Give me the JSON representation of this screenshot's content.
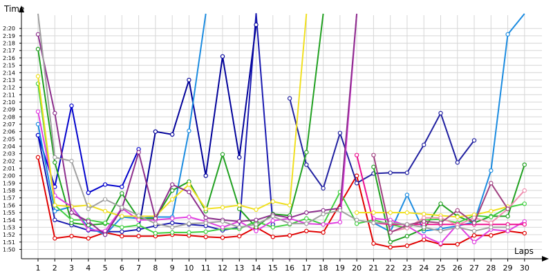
{
  "chart_data": {
    "type": "line",
    "title": "",
    "ylabel": "Time",
    "xlabel": "Laps",
    "x": [
      1,
      2,
      3,
      4,
      5,
      6,
      7,
      8,
      9,
      10,
      11,
      12,
      13,
      14,
      15,
      16,
      17,
      18,
      19,
      20,
      21,
      22,
      23,
      24,
      25,
      26,
      27,
      28,
      29,
      30
    ],
    "y_ticks": [
      "1:50",
      "1:51",
      "1:52",
      "1:53",
      "1:54",
      "1:55",
      "1:56",
      "1:57",
      "1:58",
      "1:59",
      "2:00",
      "2:01",
      "2:02",
      "2:03",
      "2:04",
      "2:05",
      "2:06",
      "2:07",
      "2:08",
      "2:09",
      "2:10",
      "2:11",
      "2:12",
      "2:13",
      "2:14",
      "2:15",
      "2:16",
      "2:17",
      "2:18",
      "2:19",
      "2:20"
    ],
    "ylim": [
      109.2,
      141.8
    ],
    "ylim_label": [
      "1:49.2",
      "2:21.8"
    ],
    "grid": true,
    "legend": "none",
    "series": [
      {
        "color": "#e00000",
        "values": [
          122.5,
          111.5,
          111.8,
          111.5,
          112.3,
          111.8,
          111.8,
          111.8,
          112.0,
          111.9,
          111.7,
          111.6,
          111.8,
          113.0,
          111.7,
          111.9,
          112.5,
          112.3,
          null,
          120.0,
          110.8,
          110.3,
          110.5,
          111.3,
          110.7,
          110.7,
          111.9,
          111.9,
          112.5,
          112.2
        ]
      },
      {
        "color": "#1a1ab0",
        "values": [
          125.5,
          114.0,
          113.3,
          112.6,
          112.4,
          112.4,
          112.7,
          113.2,
          113.6,
          113.4,
          113.2,
          112.6,
          113.0,
          142.0,
          113.4,
          null,
          null,
          null,
          null,
          null,
          null,
          null,
          null,
          null,
          null,
          null,
          null,
          null,
          null,
          null
        ]
      },
      {
        "color": "#0000cc",
        "values": [
          125.5,
          118.5,
          129.5,
          117.7,
          118.8,
          118.5,
          123.6,
          null,
          null,
          null,
          null,
          null,
          null,
          null,
          null,
          null,
          null,
          null,
          null,
          null,
          null,
          null,
          null,
          null,
          null,
          null,
          null,
          null,
          null,
          null
        ]
      },
      {
        "color": "#000099",
        "values": [
          null,
          null,
          null,
          null,
          null,
          null,
          112.7,
          126.0,
          125.6,
          133.0,
          120.0,
          136.2,
          122.5,
          140.5,
          null,
          null,
          null,
          null,
          null,
          null,
          null,
          null,
          null,
          null,
          null,
          null,
          null,
          null,
          null,
          null
        ]
      },
      {
        "color": "#2020a0",
        "values": [
          null,
          null,
          null,
          null,
          null,
          null,
          null,
          null,
          null,
          null,
          null,
          null,
          null,
          null,
          null,
          130.5,
          121.5,
          118.3,
          125.8,
          119.0,
          120.3,
          120.4,
          120.4,
          124.2,
          128.5,
          121.8,
          124.8,
          null,
          null,
          null
        ]
      },
      {
        "color": "#1a8be0",
        "values": [
          127.0,
          115.2,
          115.8,
          113.0,
          112.0,
          114.4,
          114.2,
          114.4,
          114.4,
          126.1,
          142.0,
          null,
          null,
          null,
          null,
          null,
          null,
          null,
          null,
          null,
          null,
          null,
          null,
          null,
          null,
          null,
          null,
          null,
          null,
          null
        ]
      },
      {
        "color": "#1a8be0",
        "values": [
          null,
          null,
          null,
          null,
          null,
          null,
          null,
          null,
          null,
          null,
          null,
          null,
          null,
          null,
          null,
          null,
          null,
          null,
          null,
          null,
          113.6,
          112.4,
          117.4,
          112.5,
          112.8,
          113.2,
          113.7,
          120.7,
          139.2,
          142.0
        ]
      },
      {
        "color": "#20a020",
        "values": [
          137.2,
          121.8,
          113.6,
          113.3,
          113.5,
          117.6,
          114.2,
          114.2,
          118.0,
          119.2,
          115.2,
          122.9,
          115.5,
          113.0,
          114.8,
          114.6,
          123.2,
          142.0,
          null,
          null,
          null,
          null,
          null,
          null,
          null,
          null,
          null,
          null,
          null,
          null
        ]
      },
      {
        "color": "#20a020",
        "values": [
          null,
          null,
          null,
          null,
          null,
          null,
          null,
          null,
          null,
          null,
          null,
          null,
          null,
          null,
          null,
          null,
          null,
          null,
          null,
          null,
          121.2,
          111.0,
          111.8,
          112.8,
          116.2,
          114.5,
          113.6,
          114.5,
          114.5,
          121.5
        ]
      },
      {
        "color": "#40d040",
        "values": [
          132.5,
          116.0,
          114.0,
          114.0,
          113.6,
          113.0,
          113.3,
          112.2,
          112.3,
          112.3,
          112.4,
          112.8,
          112.8,
          113.8,
          113.0,
          113.4,
          114.2,
          113.4,
          117.8,
          113.5,
          114.0,
          113.4,
          112.9,
          114.0,
          114.1,
          113.6,
          114.6,
          114.4,
          115.7,
          116.2
        ]
      },
      {
        "color": "#e040e0",
        "values": [
          128.7,
          117.3,
          115.8,
          112.7,
          112.5,
          115.6,
          114.0,
          114.0,
          114.2,
          114.4,
          113.8,
          113.0,
          113.8,
          112.5,
          113.9,
          114.2,
          113.5,
          113.4,
          113.7,
          142.0,
          null,
          null,
          null,
          null,
          null,
          null,
          null,
          null,
          null,
          null
        ]
      },
      {
        "color": "#e040e0",
        "values": [
          null,
          null,
          null,
          null,
          null,
          null,
          null,
          null,
          null,
          null,
          null,
          null,
          null,
          null,
          null,
          null,
          null,
          null,
          null,
          null,
          114.2,
          114.0,
          113.2,
          111.8,
          110.8,
          113.4,
          111.0,
          112.7,
          112.5,
          113.8
        ]
      },
      {
        "color": "#ee1090",
        "values": [
          null,
          null,
          null,
          null,
          null,
          null,
          null,
          null,
          null,
          null,
          null,
          null,
          null,
          null,
          null,
          null,
          null,
          null,
          null,
          122.8,
          113.6,
          113.4,
          113.4,
          113.4,
          113.4,
          113.4,
          113.4,
          113.4,
          113.4,
          113.4
        ]
      },
      {
        "color": "#f0e020",
        "values": [
          133.5,
          116.0,
          115.8,
          116.0,
          115.2,
          114.5,
          114.5,
          114.5,
          116.8,
          118.8,
          115.5,
          115.7,
          116.0,
          115.4,
          116.5,
          116.0,
          142.0,
          null,
          null,
          null,
          null,
          null,
          null,
          null,
          null,
          null,
          null,
          null,
          null,
          null
        ]
      },
      {
        "color": "#f0e020",
        "values": [
          null,
          null,
          null,
          null,
          null,
          null,
          null,
          null,
          null,
          null,
          null,
          null,
          null,
          null,
          null,
          null,
          null,
          null,
          null,
          115.0,
          115.0,
          115.0,
          115.0,
          114.8,
          114.6,
          114.4,
          114.7,
          115.2,
          115.8,
          null
        ]
      },
      {
        "color": "#f4a040",
        "values": [
          null,
          null,
          null,
          null,
          null,
          null,
          null,
          null,
          null,
          null,
          null,
          null,
          null,
          null,
          null,
          null,
          142.0,
          null,
          null,
          null,
          null,
          null,
          null,
          null,
          null,
          null,
          null,
          null,
          null,
          null
        ]
      },
      {
        "color": "#f090b0",
        "values": [
          null,
          null,
          null,
          null,
          null,
          null,
          null,
          null,
          null,
          null,
          null,
          null,
          null,
          null,
          null,
          null,
          null,
          null,
          null,
          null,
          null,
          112.4,
          112.9,
          114.3,
          114.3,
          113.3,
          114.3,
          113.6,
          115.5,
          118.0
        ]
      },
      {
        "color": "#8c2e8c",
        "values": [
          139.2,
          128.5,
          115.0,
          113.8,
          112.0,
          115.5,
          123.2,
          114.2,
          118.8,
          117.8,
          114.3,
          114.0,
          113.8,
          114.0,
          114.7,
          114.3,
          115.0,
          115.3,
          115.6,
          142.0,
          null,
          null,
          null,
          null,
          null,
          null,
          null,
          null,
          null,
          null
        ]
      },
      {
        "color": "#a04080",
        "values": [
          null,
          null,
          null,
          null,
          null,
          null,
          null,
          null,
          null,
          null,
          null,
          null,
          null,
          null,
          null,
          null,
          null,
          null,
          null,
          null,
          122.8,
          112.3,
          113.3,
          113.8,
          113.6,
          115.3,
          113.6,
          119.0,
          115.5,
          null
        ]
      },
      {
        "color": "#a0a0a0",
        "values": [
          142.0,
          122.5,
          122.0,
          115.5,
          116.8,
          115.7,
          114.6,
          113.5,
          113.0,
          113.5,
          113.6,
          113.8,
          113.0,
          113.4,
          114.5,
          113.5,
          113.5,
          114.8,
          115.3,
          114.0,
          113.6,
          113.6,
          113.4,
          113.0,
          112.5,
          113.0,
          112.5,
          113.0,
          113.0,
          null
        ]
      },
      {
        "color": "#707000",
        "values": [
          null,
          null,
          142.0,
          null,
          null,
          null,
          null,
          null,
          null,
          null,
          null,
          null,
          null,
          null,
          null,
          null,
          null,
          null,
          null,
          null,
          null,
          null,
          null,
          null,
          null,
          null,
          null,
          null,
          null,
          null
        ]
      }
    ]
  }
}
